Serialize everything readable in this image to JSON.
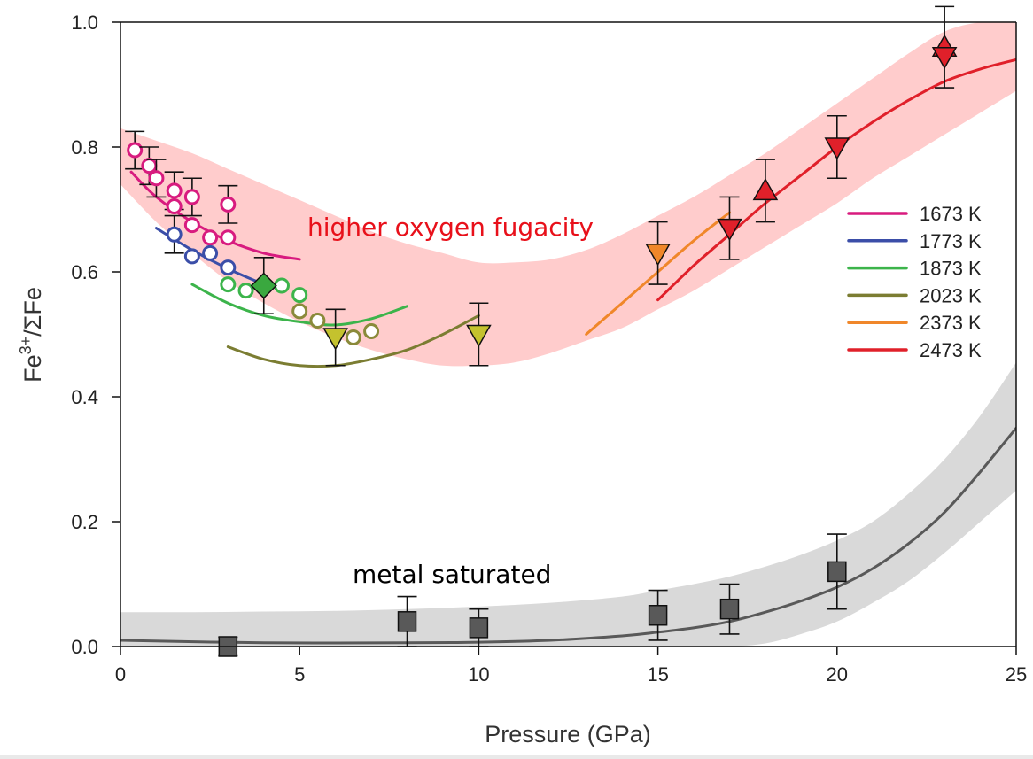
{
  "chart_data": {
    "type": "scatter",
    "xlabel": "Pressure (GPa)",
    "ylabel": {
      "base": "Fe",
      "sup": "3+",
      "rest": "/ΣFe"
    },
    "xlim": [
      0,
      25
    ],
    "ylim": [
      0,
      1.0
    ],
    "xticks": [
      0,
      5,
      10,
      15,
      20,
      25
    ],
    "xtick_labels": [
      "0",
      "5",
      "10",
      "15",
      "20",
      "25"
    ],
    "yticks": [
      0,
      0.2,
      0.4,
      0.6,
      0.8,
      1.0
    ],
    "ytick_labels": [
      "0.0",
      "0.2",
      "0.4",
      "0.6",
      "0.8",
      "1.0"
    ],
    "grid": false,
    "legend_position": "right",
    "annotations": [
      {
        "text": "higher oxygen fugacity",
        "x": 10.3,
        "y": 0.67,
        "color": "#e8101a"
      },
      {
        "text": "metal saturated",
        "x": 10.2,
        "y": 0.115,
        "color": "#000000"
      }
    ],
    "bands": [
      {
        "name": "oxidized-band",
        "color": "#ffcccc",
        "x": [
          0,
          1,
          2,
          3,
          4,
          5,
          6,
          7,
          8,
          9,
          10,
          11,
          12,
          13,
          14,
          15,
          16,
          17,
          18,
          19,
          20,
          21,
          22,
          23,
          24,
          25
        ],
        "upper": [
          0.83,
          0.81,
          0.79,
          0.765,
          0.74,
          0.715,
          0.69,
          0.665,
          0.645,
          0.63,
          0.615,
          0.615,
          0.62,
          0.635,
          0.66,
          0.69,
          0.72,
          0.755,
          0.79,
          0.83,
          0.87,
          0.91,
          0.95,
          0.985,
          1.0,
          1.0
        ],
        "lower": [
          0.74,
          0.68,
          0.63,
          0.585,
          0.55,
          0.52,
          0.495,
          0.475,
          0.46,
          0.45,
          0.45,
          0.455,
          0.47,
          0.49,
          0.51,
          0.54,
          0.57,
          0.605,
          0.64,
          0.675,
          0.71,
          0.75,
          0.785,
          0.82,
          0.855,
          0.89
        ]
      },
      {
        "name": "metal-saturated-band",
        "color": "#d9d9d9",
        "x": [
          0,
          2,
          4,
          6,
          8,
          10,
          12,
          14,
          15,
          16,
          17,
          18,
          19,
          20,
          21,
          22,
          23,
          24,
          25
        ],
        "upper": [
          0.055,
          0.055,
          0.056,
          0.057,
          0.06,
          0.064,
          0.07,
          0.08,
          0.09,
          0.1,
          0.112,
          0.128,
          0.147,
          0.17,
          0.2,
          0.245,
          0.3,
          0.37,
          0.455
        ],
        "lower": [
          0.0,
          0.0,
          0.0,
          0.0,
          0.0,
          0.0,
          0.0,
          0.0,
          0.0,
          0.0,
          0.0,
          0.005,
          0.02,
          0.04,
          0.07,
          0.105,
          0.15,
          0.2,
          0.25
        ]
      }
    ],
    "series": [
      {
        "name": "1673 K",
        "color": "#d81b7f",
        "curve_x": [
          0.3,
          1,
          2,
          3,
          4,
          5
        ],
        "curve_y": [
          0.76,
          0.72,
          0.68,
          0.65,
          0.63,
          0.62
        ]
      },
      {
        "name": "1773 K",
        "color": "#3b4ea8",
        "curve_x": [
          1,
          2,
          3,
          4
        ],
        "curve_y": [
          0.67,
          0.635,
          0.605,
          0.58
        ]
      },
      {
        "name": "1873 K",
        "color": "#3cb44b",
        "curve_x": [
          2,
          3,
          4,
          5,
          6,
          7,
          8
        ],
        "curve_y": [
          0.58,
          0.55,
          0.53,
          0.52,
          0.515,
          0.525,
          0.545
        ]
      },
      {
        "name": "2023 K",
        "color": "#7b7d32",
        "curve_x": [
          3,
          4,
          5,
          6,
          7,
          8,
          9,
          10
        ],
        "curve_y": [
          0.48,
          0.46,
          0.45,
          0.45,
          0.46,
          0.475,
          0.5,
          0.53
        ]
      },
      {
        "name": "2373 K",
        "color": "#f0872a",
        "curve_x": [
          13,
          14,
          15,
          16,
          17
        ],
        "curve_y": [
          0.5,
          0.55,
          0.6,
          0.65,
          0.695
        ]
      },
      {
        "name": "2473 K",
        "color": "#e0202a",
        "curve_x": [
          15,
          16,
          17,
          18,
          19,
          20,
          21,
          22,
          23,
          24,
          25
        ],
        "curve_y": [
          0.555,
          0.61,
          0.66,
          0.71,
          0.755,
          0.8,
          0.84,
          0.875,
          0.905,
          0.925,
          0.94
        ]
      },
      {
        "name": "metal saturated",
        "color": "#595959",
        "curve_x": [
          0,
          4,
          8,
          10,
          12,
          14,
          15,
          16,
          17,
          18,
          19,
          20,
          21,
          22,
          23,
          24,
          25
        ],
        "curve_y": [
          0.01,
          0.006,
          0.006,
          0.007,
          0.01,
          0.017,
          0.023,
          0.03,
          0.04,
          0.055,
          0.073,
          0.095,
          0.125,
          0.165,
          0.215,
          0.28,
          0.35
        ]
      }
    ],
    "points": [
      {
        "group": "1673 K",
        "marker": "circle",
        "color": "#d81b7f",
        "x": 0.4,
        "y": 0.795,
        "err": 0.03
      },
      {
        "group": "1673 K",
        "marker": "circle",
        "color": "#d81b7f",
        "x": 0.8,
        "y": 0.77,
        "err": 0.03
      },
      {
        "group": "1673 K",
        "marker": "circle",
        "color": "#d81b7f",
        "x": 1.0,
        "y": 0.75,
        "err": 0.03
      },
      {
        "group": "1673 K",
        "marker": "circle",
        "color": "#d81b7f",
        "x": 1.5,
        "y": 0.73,
        "err": 0.03
      },
      {
        "group": "1673 K",
        "marker": "circle",
        "color": "#d81b7f",
        "x": 1.5,
        "y": 0.705,
        "err": null
      },
      {
        "group": "1673 K",
        "marker": "circle",
        "color": "#d81b7f",
        "x": 2.0,
        "y": 0.72,
        "err": 0.03
      },
      {
        "group": "1673 K",
        "marker": "circle",
        "color": "#d81b7f",
        "x": 2.0,
        "y": 0.675,
        "err": null
      },
      {
        "group": "1673 K",
        "marker": "circle",
        "color": "#d81b7f",
        "x": 2.5,
        "y": 0.655,
        "err": null
      },
      {
        "group": "1673 K",
        "marker": "circle",
        "color": "#d81b7f",
        "x": 3.0,
        "y": 0.708,
        "err": 0.03
      },
      {
        "group": "1673 K",
        "marker": "circle",
        "color": "#d81b7f",
        "x": 3.0,
        "y": 0.655,
        "err": null
      },
      {
        "group": "1773 K",
        "marker": "circle",
        "color": "#3b4ea8",
        "x": 1.5,
        "y": 0.66,
        "err": 0.03
      },
      {
        "group": "1773 K",
        "marker": "circle",
        "color": "#3b4ea8",
        "x": 2.0,
        "y": 0.625,
        "err": null
      },
      {
        "group": "1773 K",
        "marker": "circle",
        "color": "#3b4ea8",
        "x": 2.5,
        "y": 0.63,
        "err": null
      },
      {
        "group": "1773 K",
        "marker": "circle",
        "color": "#3b4ea8",
        "x": 3.0,
        "y": 0.607,
        "err": null
      },
      {
        "group": "1873 K",
        "marker": "circle",
        "color": "#3cb44b",
        "x": 3.0,
        "y": 0.58,
        "err": null
      },
      {
        "group": "1873 K",
        "marker": "circle",
        "color": "#3cb44b",
        "x": 3.5,
        "y": 0.57,
        "err": null
      },
      {
        "group": "1873 K",
        "marker": "circle",
        "color": "#3cb44b",
        "x": 4.5,
        "y": 0.578,
        "err": null
      },
      {
        "group": "1873 K",
        "marker": "circle",
        "color": "#3cb44b",
        "x": 5.0,
        "y": 0.563,
        "err": null
      },
      {
        "group": "1873 K",
        "marker": "diamond",
        "color": "#3aa83f",
        "x": 4.0,
        "y": 0.578,
        "err": 0.045
      },
      {
        "group": "2023 K",
        "marker": "circle",
        "color": "#8a8a3a",
        "x": 5.0,
        "y": 0.537,
        "err": null
      },
      {
        "group": "2023 K",
        "marker": "circle",
        "color": "#8a8a3a",
        "x": 5.5,
        "y": 0.522,
        "err": null
      },
      {
        "group": "2023 K",
        "marker": "circle",
        "color": "#8a8a3a",
        "x": 6.5,
        "y": 0.495,
        "err": null
      },
      {
        "group": "2023 K",
        "marker": "circle",
        "color": "#8a8a3a",
        "x": 7.0,
        "y": 0.505,
        "err": null
      },
      {
        "group": "2023 K",
        "marker": "triangle-down",
        "color": "#c4c22e",
        "x": 6.0,
        "y": 0.495,
        "err": 0.045
      },
      {
        "group": "2023 K",
        "marker": "triangle-down",
        "color": "#c4c22e",
        "x": 10.0,
        "y": 0.5,
        "err": 0.05
      },
      {
        "group": "2373 K",
        "marker": "triangle-down",
        "color": "#f0872a",
        "x": 15.0,
        "y": 0.63,
        "err": 0.05
      },
      {
        "group": "2473 K",
        "marker": "triangle-down",
        "color": "#e0202a",
        "x": 17.0,
        "y": 0.67,
        "err": 0.05
      },
      {
        "group": "2473 K",
        "marker": "triangle-up",
        "color": "#e0202a",
        "x": 18.0,
        "y": 0.73,
        "err": 0.05
      },
      {
        "group": "2473 K",
        "marker": "triangle-down",
        "color": "#e0202a",
        "x": 20.0,
        "y": 0.8,
        "err": 0.05
      },
      {
        "group": "2473 K",
        "marker": "triangle-up",
        "color": "#e0202a",
        "x": 23.0,
        "y": 0.96,
        "err": 0.065
      },
      {
        "group": "2473 K",
        "marker": "triangle-down",
        "color": "#e0202a",
        "x": 23.0,
        "y": 0.945,
        "err": null
      },
      {
        "group": "metal saturated",
        "marker": "square",
        "color": "#595959",
        "x": 3.0,
        "y": 0.0,
        "err": 0.015
      },
      {
        "group": "metal saturated",
        "marker": "square",
        "color": "#595959",
        "x": 8.0,
        "y": 0.04,
        "err": 0.04
      },
      {
        "group": "metal saturated",
        "marker": "square",
        "color": "#595959",
        "x": 10.0,
        "y": 0.03,
        "err": 0.03
      },
      {
        "group": "metal saturated",
        "marker": "square",
        "color": "#595959",
        "x": 15.0,
        "y": 0.05,
        "err": 0.04
      },
      {
        "group": "metal saturated",
        "marker": "square",
        "color": "#595959",
        "x": 17.0,
        "y": 0.06,
        "err": 0.04
      },
      {
        "group": "metal saturated",
        "marker": "square",
        "color": "#595959",
        "x": 20.0,
        "y": 0.12,
        "err": 0.06
      }
    ]
  }
}
